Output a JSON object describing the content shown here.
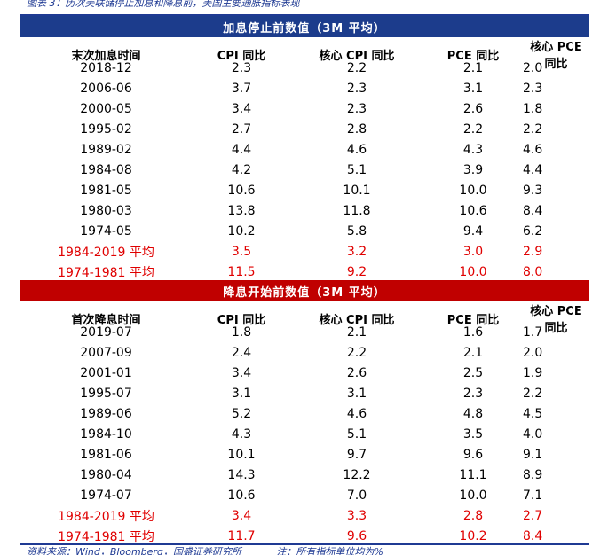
{
  "caption": "图表 3：历次美联储停止加息和降息前，美国主要通胀指标表现",
  "table1": {
    "banner": "加息停止前数值（3M 平均）",
    "headers": [
      "末次加息时间",
      "CPI 同比",
      "核心 CPI 同比",
      "PCE 同比",
      "核心 PCE 同比"
    ],
    "rows": [
      [
        "2018-12",
        "2.3",
        "2.2",
        "2.1",
        "2.0"
      ],
      [
        "2006-06",
        "3.7",
        "2.3",
        "3.1",
        "2.3"
      ],
      [
        "2000-05",
        "3.4",
        "2.3",
        "2.6",
        "1.8"
      ],
      [
        "1995-02",
        "2.7",
        "2.8",
        "2.2",
        "2.2"
      ],
      [
        "1989-02",
        "4.4",
        "4.6",
        "4.3",
        "4.6"
      ],
      [
        "1984-08",
        "4.2",
        "5.1",
        "3.9",
        "4.4"
      ],
      [
        "1981-05",
        "10.6",
        "10.1",
        "10.0",
        "9.3"
      ],
      [
        "1980-03",
        "13.8",
        "11.8",
        "10.6",
        "8.4"
      ],
      [
        "1974-05",
        "10.2",
        "5.8",
        "9.4",
        "6.2"
      ]
    ],
    "averages": [
      [
        "1984-2019 平均",
        "3.5",
        "3.2",
        "3.0",
        "2.9"
      ],
      [
        "1974-1981 平均",
        "11.5",
        "9.2",
        "10.0",
        "8.0"
      ]
    ]
  },
  "table2": {
    "banner": "降息开始前数值（3M 平均）",
    "headers": [
      "首次降息时间",
      "CPI 同比",
      "核心 CPI 同比",
      "PCE 同比",
      "核心 PCE 同比"
    ],
    "rows": [
      [
        "2019-07",
        "1.8",
        "2.1",
        "1.6",
        "1.7"
      ],
      [
        "2007-09",
        "2.4",
        "2.2",
        "2.1",
        "2.0"
      ],
      [
        "2001-01",
        "3.4",
        "2.6",
        "2.5",
        "1.9"
      ],
      [
        "1995-07",
        "3.1",
        "3.1",
        "2.3",
        "2.2"
      ],
      [
        "1989-06",
        "5.2",
        "4.6",
        "4.8",
        "4.5"
      ],
      [
        "1984-10",
        "4.3",
        "5.1",
        "3.5",
        "4.0"
      ],
      [
        "1981-06",
        "10.1",
        "9.7",
        "9.6",
        "9.1"
      ],
      [
        "1980-04",
        "14.3",
        "12.2",
        "11.1",
        "8.9"
      ],
      [
        "1974-07",
        "10.6",
        "7.0",
        "10.0",
        "7.1"
      ]
    ],
    "averages": [
      [
        "1984-2019 平均",
        "3.4",
        "3.3",
        "2.8",
        "2.7"
      ],
      [
        "1974-1981 平均",
        "11.7",
        "9.6",
        "10.2",
        "8.4"
      ]
    ]
  },
  "footer": {
    "source": "资料来源：Wind，Bloomberg，国盛证券研究所",
    "note": "注：所有指标单位均为%"
  },
  "colors": {
    "header_blue": "#1c3c8c",
    "header_red": "#c00000",
    "average_text": "#e00000",
    "rule_blue": "#1f3a93"
  }
}
